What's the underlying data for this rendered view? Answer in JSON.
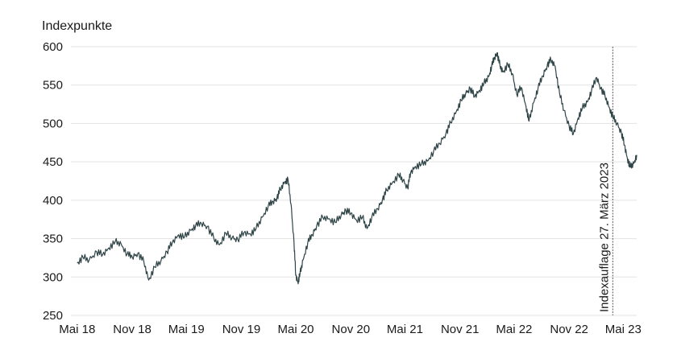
{
  "chart_data": {
    "type": "line",
    "title": "",
    "ylabel": "Indexpunkte",
    "xlabel": "",
    "ylim": [
      250,
      600
    ],
    "yticks": [
      250,
      300,
      350,
      400,
      450,
      500,
      550,
      600
    ],
    "xlim": [
      "2018-04-10",
      "2023-06-15"
    ],
    "xticks": [
      {
        "label": "Mai 18",
        "date": "2018-05-01"
      },
      {
        "label": "Nov 18",
        "date": "2018-11-01"
      },
      {
        "label": "Mai 19",
        "date": "2019-05-01"
      },
      {
        "label": "Nov 19",
        "date": "2019-11-01"
      },
      {
        "label": "Mai 20",
        "date": "2020-05-01"
      },
      {
        "label": "Nov 20",
        "date": "2020-11-01"
      },
      {
        "label": "Mai 21",
        "date": "2021-05-01"
      },
      {
        "label": "Nov 21",
        "date": "2021-11-01"
      },
      {
        "label": "Mai 22",
        "date": "2022-05-01"
      },
      {
        "label": "Nov 22",
        "date": "2022-11-01"
      },
      {
        "label": "Mai 23",
        "date": "2023-05-01"
      }
    ],
    "grid": "horizontal",
    "series": [
      {
        "color": "#2f4447",
        "points": [
          [
            "2018-05-01",
            318
          ],
          [
            "2018-05-20",
            326
          ],
          [
            "2018-06-10",
            322
          ],
          [
            "2018-07-05",
            333
          ],
          [
            "2018-07-25",
            329
          ],
          [
            "2018-08-15",
            338
          ],
          [
            "2018-09-05",
            346
          ],
          [
            "2018-09-25",
            343
          ],
          [
            "2018-10-15",
            330
          ],
          [
            "2018-11-01",
            326
          ],
          [
            "2018-11-20",
            331
          ],
          [
            "2018-12-10",
            320
          ],
          [
            "2018-12-26",
            296
          ],
          [
            "2019-01-15",
            313
          ],
          [
            "2019-02-05",
            321
          ],
          [
            "2019-02-25",
            333
          ],
          [
            "2019-03-15",
            345
          ],
          [
            "2019-04-05",
            355
          ],
          [
            "2019-04-25",
            352
          ],
          [
            "2019-05-15",
            361
          ],
          [
            "2019-06-01",
            367
          ],
          [
            "2019-06-20",
            370
          ],
          [
            "2019-07-10",
            366
          ],
          [
            "2019-08-01",
            350
          ],
          [
            "2019-08-20",
            342
          ],
          [
            "2019-09-10",
            357
          ],
          [
            "2019-10-01",
            351
          ],
          [
            "2019-10-20",
            349
          ],
          [
            "2019-11-10",
            358
          ],
          [
            "2019-12-01",
            356
          ],
          [
            "2019-12-20",
            363
          ],
          [
            "2020-01-10",
            378
          ],
          [
            "2020-01-30",
            393
          ],
          [
            "2020-02-15",
            398
          ],
          [
            "2020-02-28",
            403
          ],
          [
            "2020-03-10",
            414
          ],
          [
            "2020-03-25",
            424
          ],
          [
            "2020-04-05",
            427
          ],
          [
            "2020-04-15",
            395
          ],
          [
            "2020-04-25",
            345
          ],
          [
            "2020-05-01",
            302
          ],
          [
            "2020-05-08",
            293
          ],
          [
            "2020-05-15",
            304
          ],
          [
            "2020-05-25",
            322
          ],
          [
            "2020-06-10",
            345
          ],
          [
            "2020-06-25",
            355
          ],
          [
            "2020-07-10",
            367
          ],
          [
            "2020-07-30",
            378
          ],
          [
            "2020-08-20",
            376
          ],
          [
            "2020-09-10",
            371
          ],
          [
            "2020-09-30",
            381
          ],
          [
            "2020-10-15",
            387
          ],
          [
            "2020-11-01",
            383
          ],
          [
            "2020-11-20",
            374
          ],
          [
            "2020-12-10",
            378
          ],
          [
            "2020-12-25",
            363
          ],
          [
            "2021-01-10",
            378
          ],
          [
            "2021-01-30",
            389
          ],
          [
            "2021-02-15",
            401
          ],
          [
            "2021-03-01",
            413
          ],
          [
            "2021-03-20",
            423
          ],
          [
            "2021-04-10",
            433
          ],
          [
            "2021-04-25",
            426
          ],
          [
            "2021-05-10",
            416
          ],
          [
            "2021-05-20",
            436
          ],
          [
            "2021-06-05",
            444
          ],
          [
            "2021-06-25",
            447
          ],
          [
            "2021-07-15",
            451
          ],
          [
            "2021-08-05",
            464
          ],
          [
            "2021-08-25",
            474
          ],
          [
            "2021-09-15",
            487
          ],
          [
            "2021-10-01",
            501
          ],
          [
            "2021-10-20",
            516
          ],
          [
            "2021-11-05",
            530
          ],
          [
            "2021-11-20",
            539
          ],
          [
            "2021-12-05",
            546
          ],
          [
            "2021-12-20",
            535
          ],
          [
            "2022-01-05",
            543
          ],
          [
            "2022-01-20",
            552
          ],
          [
            "2022-02-05",
            561
          ],
          [
            "2022-02-15",
            575
          ],
          [
            "2022-02-25",
            586
          ],
          [
            "2022-03-05",
            592
          ],
          [
            "2022-03-15",
            575
          ],
          [
            "2022-03-25",
            567
          ],
          [
            "2022-04-10",
            577
          ],
          [
            "2022-04-25",
            565
          ],
          [
            "2022-05-10",
            538
          ],
          [
            "2022-05-25",
            547
          ],
          [
            "2022-06-10",
            522
          ],
          [
            "2022-06-20",
            503
          ],
          [
            "2022-07-05",
            527
          ],
          [
            "2022-07-20",
            546
          ],
          [
            "2022-08-05",
            562
          ],
          [
            "2022-08-20",
            576
          ],
          [
            "2022-09-01",
            583
          ],
          [
            "2022-09-15",
            575
          ],
          [
            "2022-09-30",
            539
          ],
          [
            "2022-10-15",
            517
          ],
          [
            "2022-11-01",
            497
          ],
          [
            "2022-11-15",
            486
          ],
          [
            "2022-12-01",
            507
          ],
          [
            "2022-12-15",
            520
          ],
          [
            "2023-01-01",
            528
          ],
          [
            "2023-01-15",
            543
          ],
          [
            "2023-02-01",
            560
          ],
          [
            "2023-02-15",
            546
          ],
          [
            "2023-03-01",
            536
          ],
          [
            "2023-03-15",
            521
          ],
          [
            "2023-03-27",
            509
          ],
          [
            "2023-04-10",
            500
          ],
          [
            "2023-04-25",
            488
          ],
          [
            "2023-05-05",
            472
          ],
          [
            "2023-05-15",
            454
          ],
          [
            "2023-05-25",
            443
          ],
          [
            "2023-06-05",
            448
          ],
          [
            "2023-06-15",
            459
          ]
        ]
      }
    ],
    "annotations": [
      {
        "text": "Indexauflage 27. März 2023",
        "date": "2023-03-27"
      }
    ]
  }
}
